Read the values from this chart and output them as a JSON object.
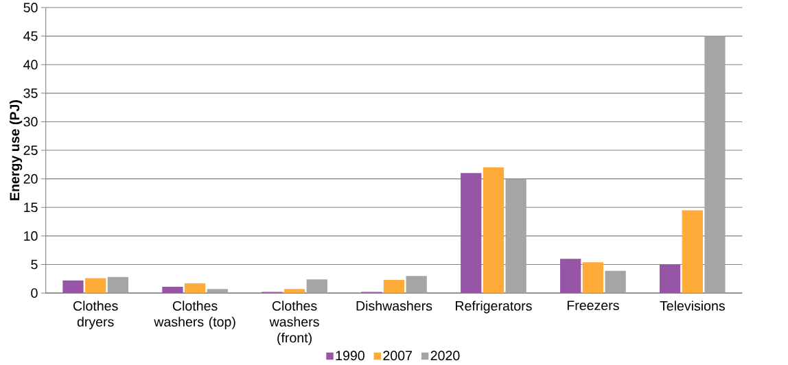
{
  "chart_data": {
    "type": "bar",
    "ylabel": "Energy use (PJ)",
    "categories": [
      "Clothes dryers",
      "Clothes washers (top)",
      "Clothes washers (front)",
      "Dishwashers",
      "Refrigerators",
      "Freezers",
      "Televisions"
    ],
    "series": [
      {
        "name": "1990",
        "color": "#9655a5",
        "values": [
          2.2,
          1.1,
          0.2,
          0.2,
          21.0,
          6.0,
          5.0
        ]
      },
      {
        "name": "2007",
        "color": "#ffab3a",
        "values": [
          2.6,
          1.7,
          0.7,
          2.3,
          22.0,
          5.4,
          14.5
        ]
      },
      {
        "name": "2020",
        "color": "#a5a5a5",
        "values": [
          2.8,
          0.7,
          2.4,
          3.0,
          20.0,
          3.9,
          45.0
        ]
      }
    ],
    "ylim": [
      0,
      50
    ],
    "yticks": [
      0,
      5,
      10,
      15,
      20,
      25,
      30,
      35,
      40,
      45,
      50
    ],
    "grid": "y",
    "legend": "bottom"
  }
}
